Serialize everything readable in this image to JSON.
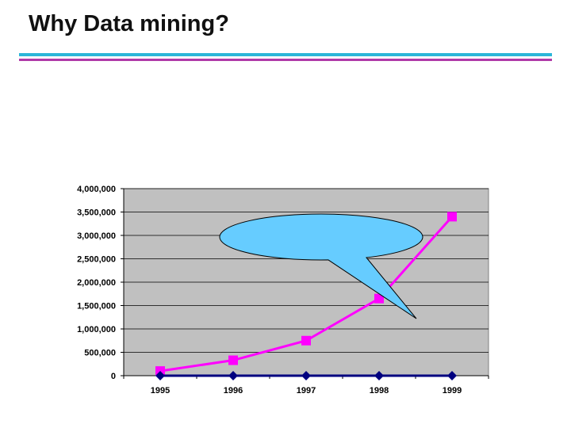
{
  "slide": {
    "title": "Why Data mining?"
  },
  "colors": {
    "rule_cyan": "#2bb6d9",
    "rule_magenta": "#b03aa8",
    "plot_background": "#c0c0c0",
    "series_magenta": "#ff00ff",
    "series_navy": "#000080",
    "callout_fill": "#66ccff"
  },
  "chart_data": {
    "type": "line",
    "categories": [
      "1995",
      "1996",
      "1997",
      "1998",
      "1999"
    ],
    "series": [
      {
        "values": [
          100000,
          330000,
          750000,
          1650000,
          3400000
        ],
        "color": "#ff00ff",
        "marker": "square"
      },
      {
        "values": [
          0,
          0,
          0,
          0,
          0
        ],
        "color": "#000080",
        "marker": "diamond"
      }
    ],
    "ylim": [
      0,
      4000000
    ],
    "yticks": [
      "0",
      "500,000",
      "1,000,000",
      "1,500,000",
      "2,000,000",
      "2,500,000",
      "3,000,000",
      "3,500,000",
      "4,000,000"
    ],
    "grid": true,
    "legend": "none",
    "annotation": {
      "type": "speech-bubble",
      "text": ""
    }
  }
}
